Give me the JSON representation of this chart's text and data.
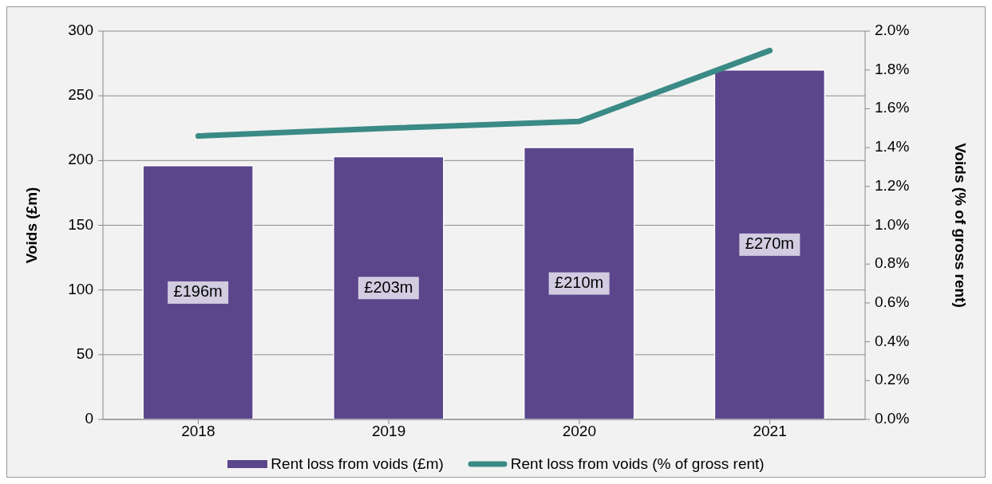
{
  "chart_data": {
    "type": "bar",
    "ylabel": "Voids (£m)",
    "y2label": "Voids (% of gross rent)",
    "categories": [
      "2018",
      "2019",
      "2020",
      "2021"
    ],
    "series": [
      {
        "name": "Rent loss from voids (£m)",
        "color": "#5b468c",
        "values": [
          196,
          203,
          210,
          270
        ],
        "value_labels": [
          "£196m",
          "£203m",
          "£210m",
          "£270m"
        ]
      },
      {
        "name": "Rent loss from voids (% of gross rent)",
        "type": "line",
        "axis": "y2",
        "color": "#3a8a85",
        "values": [
          1.46,
          1.5,
          1.535,
          1.9
        ]
      }
    ],
    "ylim": [
      0,
      300
    ],
    "yticks": [
      0,
      50,
      100,
      150,
      200,
      250,
      300
    ],
    "y2lim": [
      0,
      2
    ],
    "y2ticks": [
      {
        "value": 0,
        "label": "0.0%"
      },
      {
        "value": 0.2,
        "label": "0.2%"
      },
      {
        "value": 0.4,
        "label": "0.4%"
      },
      {
        "value": 0.6,
        "label": "0.6%"
      },
      {
        "value": 0.8,
        "label": "0.8%"
      },
      {
        "value": 1,
        "label": "1.0%"
      },
      {
        "value": 1.2,
        "label": "1.2%"
      },
      {
        "value": 1.4,
        "label": "1.4%"
      },
      {
        "value": 1.6,
        "label": "1.6%"
      },
      {
        "value": 1.8,
        "label": "1.8%"
      },
      {
        "value": 2,
        "label": "2.0%"
      }
    ],
    "grid": "y",
    "legend": "bottom",
    "marker": "none"
  }
}
